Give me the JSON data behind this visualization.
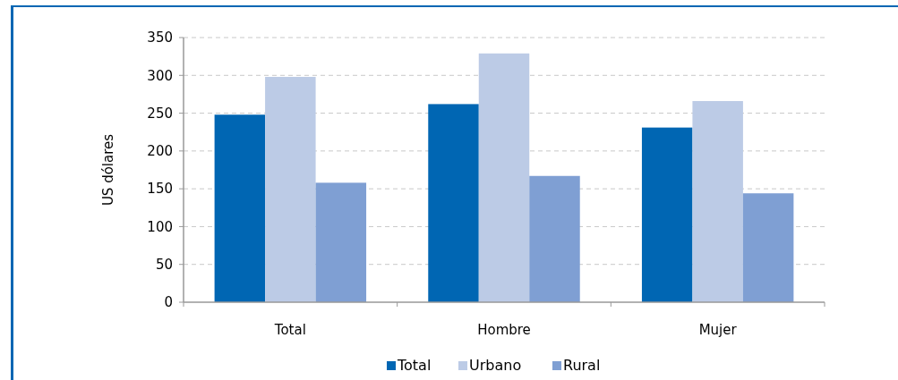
{
  "chart_data": {
    "type": "bar",
    "ylabel": "US dólares",
    "categories": [
      "Total",
      "Hombre",
      "Mujer"
    ],
    "series": [
      {
        "name": "Total",
        "color": "#0066b3",
        "values": [
          248,
          262,
          231
        ]
      },
      {
        "name": "Urbano",
        "color": "#bccbe6",
        "values": [
          298,
          329,
          266
        ]
      },
      {
        "name": "Rural",
        "color": "#7f9fd3",
        "values": [
          158,
          167,
          144
        ]
      }
    ],
    "ylim": [
      0,
      350
    ],
    "yticks": [
      0,
      50,
      100,
      150,
      200,
      250,
      300,
      350
    ],
    "grid": "y",
    "legend": "bottom"
  }
}
